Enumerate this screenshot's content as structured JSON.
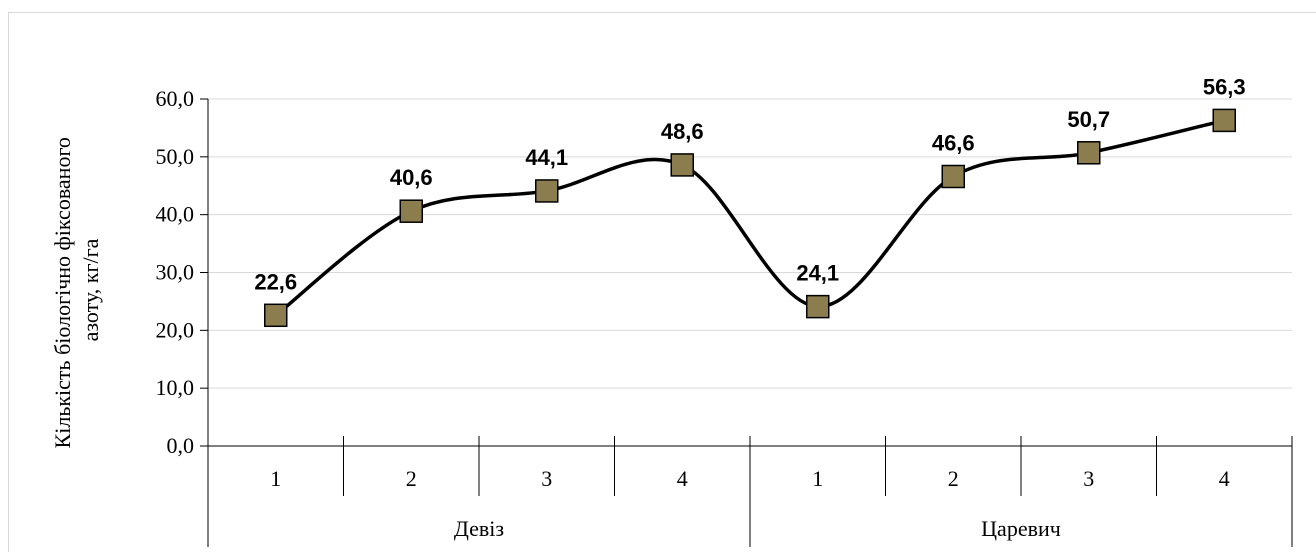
{
  "chart_data": {
    "type": "line",
    "groups": [
      {
        "name": "Девіз",
        "categories": [
          "1",
          "2",
          "3",
          "4"
        ]
      },
      {
        "name": "Царевич",
        "categories": [
          "1",
          "2",
          "3",
          "4"
        ]
      }
    ],
    "categories": [
      "1",
      "2",
      "3",
      "4",
      "1",
      "2",
      "3",
      "4"
    ],
    "values": [
      22.6,
      40.6,
      44.1,
      48.6,
      24.1,
      46.6,
      50.7,
      56.3
    ],
    "value_labels": [
      "22,6",
      "40,6",
      "44,1",
      "48,6",
      "24,1",
      "46,6",
      "50,7",
      "56,3"
    ],
    "ylabel_lines": [
      "Кількість біологічно фіксованого",
      "азоту, кг/га"
    ],
    "ylim": [
      0,
      60
    ],
    "yticks": [
      "0,0",
      "10,0",
      "20,0",
      "30,0",
      "40,0",
      "50,0",
      "60,0"
    ],
    "ytick_values": [
      0,
      10,
      20,
      30,
      40,
      50,
      60
    ],
    "grid": true,
    "line_color": "#000000",
    "marker": "square",
    "marker_color": "#8b7d4e",
    "grid_color": "#d9d9d9",
    "smooth": true
  }
}
